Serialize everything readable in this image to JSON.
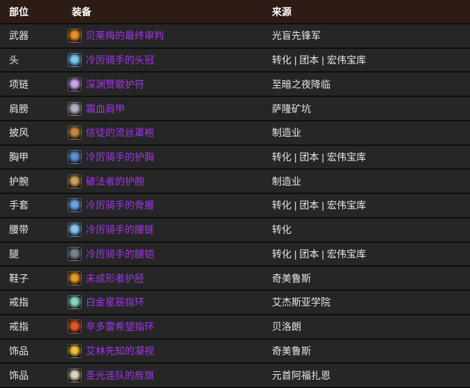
{
  "colors": {
    "header_bg": "#2d1b16",
    "header_text": "#ffffff",
    "row_bg": "#262626",
    "separator": "#0e0e0e",
    "text": "#e8e8e8",
    "link": "#a335ee"
  },
  "table": {
    "columns": [
      {
        "key": "slot",
        "label": "部位"
      },
      {
        "key": "item",
        "label": "装备"
      },
      {
        "key": "source",
        "label": "来源"
      }
    ],
    "rows": [
      {
        "slot": "武器",
        "item": "贝莱梅的最终审判",
        "source": "光盲先锋军",
        "icon": "weapon-sword-icon",
        "icon_fg": "#e8912a",
        "icon_bg": "#2a1508"
      },
      {
        "slot": "头",
        "item": "冷厉骑手的头冠",
        "source": "转化 | 团本 | 宏伟宝库",
        "icon": "helm-crown-icon",
        "icon_fg": "#7ec8e8",
        "icon_bg": "#132849"
      },
      {
        "slot": "项链",
        "item": "深渊赞歌护符",
        "source": "至暗之夜降临",
        "icon": "amulet-icon",
        "icon_fg": "#c9a3e8",
        "icon_bg": "#1d1320"
      },
      {
        "slot": "肩膀",
        "item": "霜血肩甲",
        "source": "萨隆矿坑",
        "icon": "shoulder-armor-icon",
        "icon_fg": "#a8b4c2",
        "icon_bg": "#2f251e"
      },
      {
        "slot": "披风",
        "item": "信徒的流丝罩袍",
        "source": "制造业",
        "icon": "cloak-icon",
        "icon_fg": "#c08a3e",
        "icon_bg": "#241a10"
      },
      {
        "slot": "胸甲",
        "item": "冷厉骑手的护胸",
        "source": "转化 | 团本 | 宏伟宝库",
        "icon": "chest-armor-icon",
        "icon_fg": "#5d8fc4",
        "icon_bg": "#101f38"
      },
      {
        "slot": "护腕",
        "item": "破法者的护腕",
        "source": "制造业",
        "icon": "bracers-icon",
        "icon_fg": "#caa05a",
        "icon_bg": "#1c1208"
      },
      {
        "slot": "手套",
        "item": "冷厉骑手的骨握",
        "source": "转化 | 团本 | 宏伟宝库",
        "icon": "gloves-icon",
        "icon_fg": "#6ba3d8",
        "icon_bg": "#122037"
      },
      {
        "slot": "腰带",
        "item": "冷厉骑手的腰链",
        "source": "转化",
        "icon": "belt-icon",
        "icon_fg": "#8fc4e8",
        "icon_bg": "#0f2240"
      },
      {
        "slot": "腿",
        "item": "冷厉骑手的腿铠",
        "source": "转化 | 团本 | 宏伟宝库",
        "icon": "leg-armor-icon",
        "icon_fg": "#7a838e",
        "icon_bg": "#1b1d22"
      },
      {
        "slot": "鞋子",
        "item": "未成形者护胫",
        "source": "奇美鲁斯",
        "icon": "boots-icon",
        "icon_fg": "#e09b2d",
        "icon_bg": "#2a1505"
      },
      {
        "slot": "戒指",
        "item": "白金星辰指环",
        "source": "艾杰斯亚学院",
        "icon": "ring-icon",
        "icon_fg": "#8fd4c0",
        "icon_bg": "#15262a"
      },
      {
        "slot": "戒指",
        "item": "辛多雷希望指环",
        "source": "贝洛朗",
        "icon": "ring-icon",
        "icon_fg": "#e05a28",
        "icon_bg": "#30100a"
      },
      {
        "slot": "饰品",
        "item": "艾林先知的凝视",
        "source": "奇美鲁斯",
        "icon": "trinket-eye-icon",
        "icon_fg": "#e8c13a",
        "icon_bg": "#0f0d08"
      },
      {
        "slot": "饰品",
        "item": "圣光连队的旌旗",
        "source": "元首阿福扎恩",
        "icon": "trinket-banner-icon",
        "icon_fg": "#ded2ba",
        "icon_bg": "#181410"
      }
    ]
  }
}
